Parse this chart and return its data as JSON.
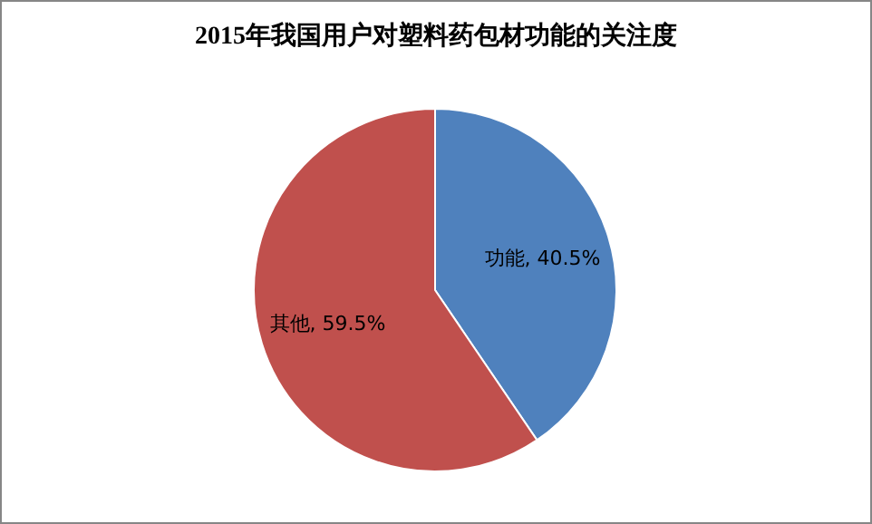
{
  "chart_data": {
    "type": "pie",
    "title": "2015年我国用户对塑料药包材功能的关注度",
    "categories": [
      "功能",
      "其他"
    ],
    "values": [
      40.5,
      59.5
    ],
    "colors": [
      "#4f81bd",
      "#c0504d"
    ],
    "value_labels": [
      ", 40.5%",
      ", 59.5%"
    ]
  }
}
